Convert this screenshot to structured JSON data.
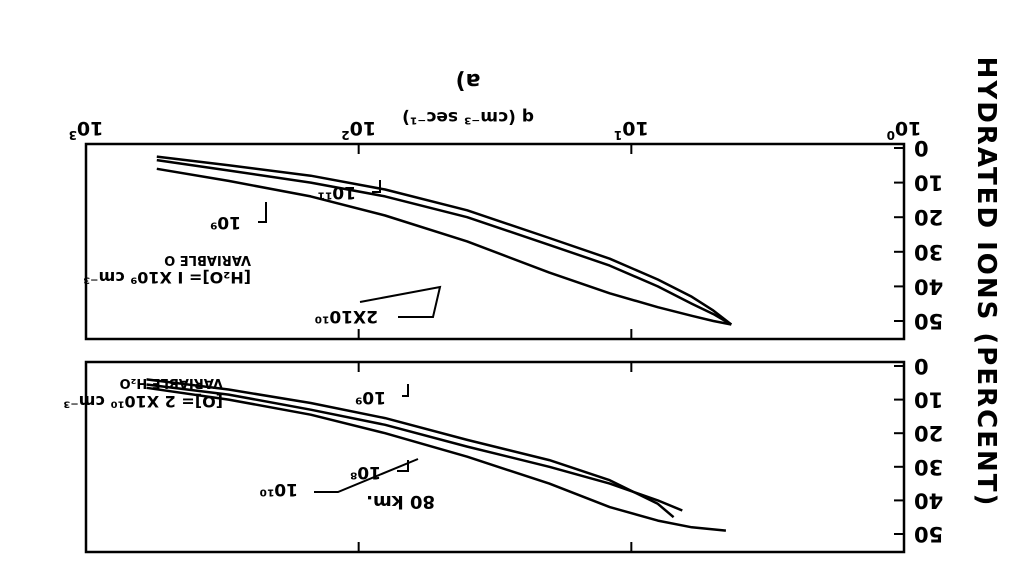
{
  "figure": {
    "ylabel": "HYDRATED IONS (PERCENT)",
    "xlabel": "q (cm⁻³ sec⁻¹)",
    "caption": "a)",
    "orientation": "rotated 180°",
    "xticks": [
      {
        "base": "10",
        "exp": "0",
        "value": 1
      },
      {
        "base": "10",
        "exp": "1",
        "value": 10
      },
      {
        "base": "10",
        "exp": "2",
        "value": 100
      },
      {
        "base": "10",
        "exp": "3",
        "value": 1000
      }
    ],
    "yticks": [
      "0",
      "10",
      "20",
      "30",
      "40",
      "50"
    ]
  },
  "chart_data": [
    {
      "type": "line",
      "panel": "top",
      "annotation_lines": [
        "[O]= 2 X10¹⁰ cm⁻³",
        "VARIABLE H₂O"
      ],
      "altitude_label": "80 km.",
      "x_scale": "log",
      "xlim": [
        1,
        1000
      ],
      "ylim": [
        0,
        50
      ],
      "series": [
        {
          "name": "10¹⁰",
          "x": [
            4.5,
            6,
            8,
            12,
            20,
            40,
            80,
            150,
            300,
            600
          ],
          "y": [
            49,
            48,
            46,
            42,
            35,
            27,
            20,
            14.5,
            10,
            6.5
          ]
        },
        {
          "name": "10⁹",
          "x": [
            6.5,
            8,
            12,
            20,
            40,
            80,
            150,
            300,
            600
          ],
          "y": [
            43,
            40,
            35,
            30,
            24,
            17.5,
            13,
            8.5,
            5.5
          ]
        },
        {
          "name": "10⁸",
          "x": [
            7,
            8,
            12,
            20,
            40,
            80,
            150,
            300,
            600
          ],
          "y": [
            45,
            41,
            34,
            28,
            22,
            15.5,
            11,
            7,
            4
          ]
        }
      ]
    },
    {
      "type": "line",
      "panel": "bottom",
      "annotation_lines": [
        "[H₂O]= I X10⁹ cm⁻³",
        "VARIABLE O"
      ],
      "x_scale": "log",
      "xlim": [
        1,
        1000
      ],
      "ylim": [
        0,
        50
      ],
      "series": [
        {
          "name": "10⁹",
          "x": [
            4.3,
            5,
            6,
            8,
            12,
            20,
            40,
            80,
            150,
            300,
            550
          ],
          "y": [
            51,
            50,
            48.5,
            46,
            42,
            36,
            27,
            19.5,
            14,
            9.5,
            6
          ]
        },
        {
          "name": "2X10¹⁰",
          "x": [
            4.3,
            5,
            6,
            8,
            12,
            20,
            40,
            80,
            150,
            300,
            550
          ],
          "y": [
            51,
            48,
            45,
            40,
            34,
            28,
            20,
            14,
            10,
            6.5,
            3.5
          ]
        },
        {
          "name": "10¹¹",
          "x": [
            4.3,
            5,
            6,
            8,
            12,
            20,
            40,
            80,
            150,
            300,
            550
          ],
          "y": [
            51,
            47,
            43,
            38,
            32,
            26,
            18,
            12,
            8,
            5,
            2.5
          ]
        }
      ]
    }
  ]
}
